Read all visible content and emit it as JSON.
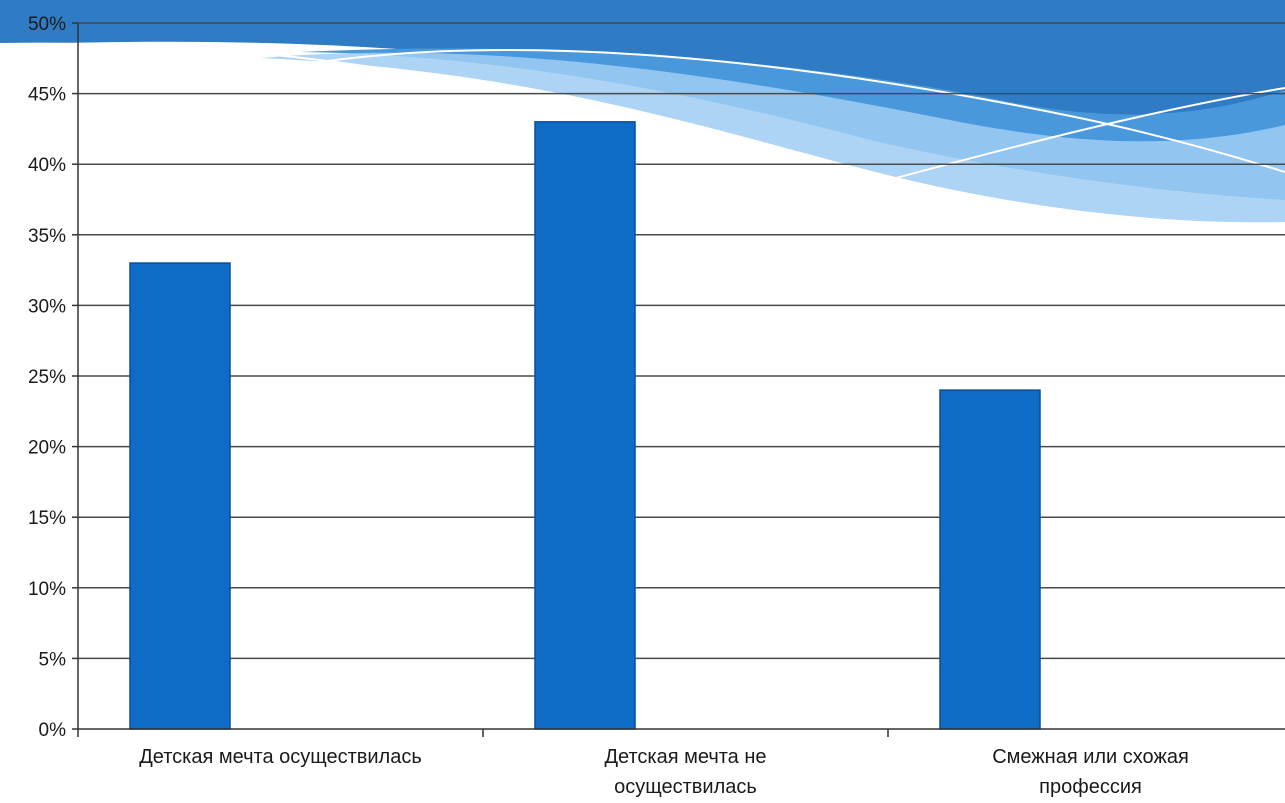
{
  "chart_data": {
    "type": "bar",
    "title": "",
    "xlabel": "",
    "ylabel": "",
    "categories": [
      [
        "Детская мечта осуществилась"
      ],
      [
        "Детская мечта не",
        "осуществилась"
      ],
      [
        "Смежная или схожая",
        "профессия"
      ]
    ],
    "values": [
      33,
      43,
      24
    ],
    "ylim": [
      0,
      50
    ],
    "ytick_step": 5,
    "ytick_suffix": "%",
    "grid": true,
    "legend": "none",
    "colors": {
      "bar": "#0f6cc6",
      "bar_edge": "#0a4f96",
      "grid": "#4a4a4a",
      "axis": "#333333",
      "banner_dark": "#2f7cc4",
      "banner_mid": "#4a98dc",
      "banner_light": "#9fcdf2"
    }
  }
}
